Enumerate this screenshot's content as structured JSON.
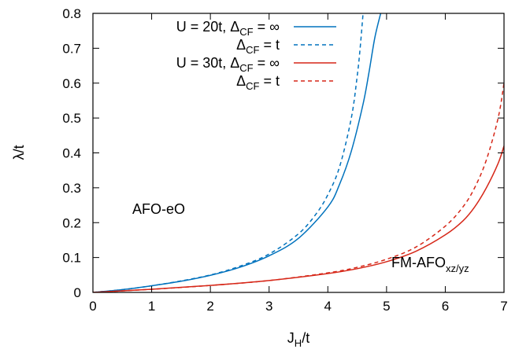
{
  "chart_data": {
    "type": "line",
    "xlabel": {
      "main": "J",
      "sub": "H",
      "rest": "/t"
    },
    "ylabel": "λ/t",
    "xlim": [
      0,
      7
    ],
    "ylim": [
      0,
      0.8
    ],
    "xticks": [
      "0",
      "1",
      "2",
      "3",
      "4",
      "5",
      "6",
      "7"
    ],
    "yticks": [
      "0",
      "0.1",
      "0.2",
      "0.3",
      "0.4",
      "0.5",
      "0.6",
      "0.7",
      "0.8"
    ],
    "grid": false,
    "legend_position": "top-right",
    "legend": [
      {
        "prefix": "U = 20t, ",
        "delta": "Δ",
        "sub": "CF",
        "suffix": " = ∞"
      },
      {
        "prefix": "",
        "delta": "Δ",
        "sub": "CF",
        "suffix": " = t"
      },
      {
        "prefix": "U = 30t, ",
        "delta": "Δ",
        "sub": "CF",
        "suffix": " = ∞"
      },
      {
        "prefix": "",
        "delta": "Δ",
        "sub": "CF",
        "suffix": " = t"
      }
    ],
    "annotations": [
      {
        "text": "AFO-eO",
        "sub": ""
      },
      {
        "text": "FM-AFO",
        "sub": "xz/yz"
      }
    ],
    "series": [
      {
        "color": "#0072bd",
        "dash": "solid",
        "x": [
          0,
          0.5,
          1,
          1.5,
          2,
          2.5,
          3,
          3.5,
          4,
          4.2,
          4.4,
          4.6,
          4.7,
          4.8,
          4.9
        ],
        "y": [
          0,
          0.008,
          0.019,
          0.032,
          0.049,
          0.072,
          0.105,
          0.155,
          0.245,
          0.31,
          0.405,
          0.54,
          0.63,
          0.73,
          0.8
        ]
      },
      {
        "color": "#0072bd",
        "dash": "dashed",
        "x": [
          0,
          0.5,
          1,
          1.5,
          2,
          2.5,
          3,
          3.5,
          3.8,
          4,
          4.2,
          4.4,
          4.5,
          4.55,
          4.6
        ],
        "y": [
          0,
          0.008,
          0.019,
          0.033,
          0.05,
          0.075,
          0.11,
          0.168,
          0.225,
          0.28,
          0.36,
          0.5,
          0.62,
          0.7,
          0.8
        ]
      },
      {
        "color": "#d62718",
        "dash": "solid",
        "x": [
          0,
          1,
          2,
          3,
          4,
          4.5,
          5,
          5.5,
          6,
          6.3,
          6.5,
          6.7,
          6.9,
          7
        ],
        "y": [
          0,
          0.009,
          0.02,
          0.034,
          0.054,
          0.068,
          0.088,
          0.118,
          0.165,
          0.205,
          0.245,
          0.3,
          0.37,
          0.42
        ]
      },
      {
        "color": "#d62718",
        "dash": "dashed",
        "x": [
          0,
          1,
          2,
          3,
          4,
          4.5,
          5,
          5.5,
          6,
          6.3,
          6.5,
          6.7,
          6.9,
          7
        ],
        "y": [
          0,
          0.009,
          0.02,
          0.034,
          0.056,
          0.072,
          0.095,
          0.13,
          0.19,
          0.245,
          0.3,
          0.38,
          0.5,
          0.6
        ]
      }
    ]
  }
}
